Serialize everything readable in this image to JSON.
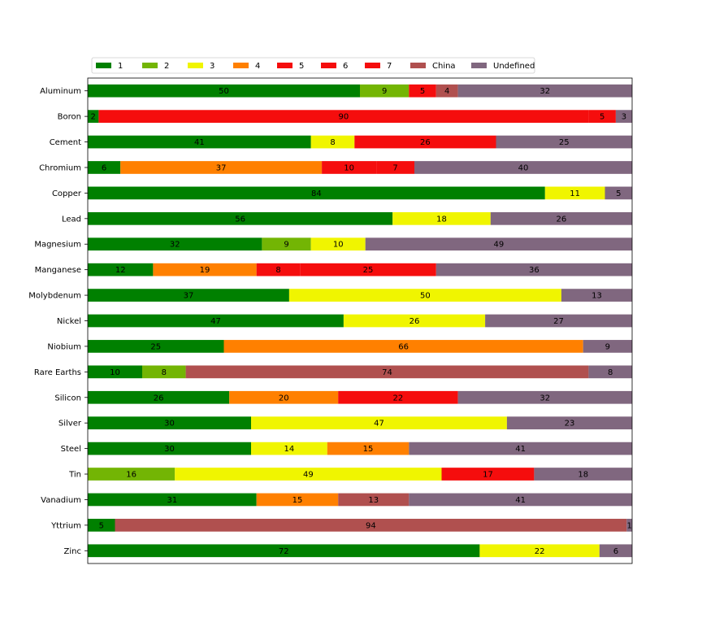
{
  "chart_data": {
    "type": "bar",
    "orientation": "horizontal",
    "stacked": true,
    "title": "",
    "xlabel": "",
    "ylabel": "",
    "xlim": [
      0,
      100
    ],
    "grid": false,
    "legend_position": "top-left",
    "categories": [
      "Aluminum",
      "Boron",
      "Cement",
      "Chromium",
      "Copper",
      "Lead",
      "Magnesium",
      "Manganese",
      "Molybdenum",
      "Nickel",
      "Niobium",
      "Rare Earths",
      "Silicon",
      "Silver",
      "Steel",
      "Tin",
      "Vanadium",
      "Yttrium",
      "Zinc"
    ],
    "series": [
      {
        "name": "1",
        "color": "#008000",
        "values": [
          50,
          2,
          41,
          6,
          84,
          56,
          32,
          12,
          37,
          47,
          25,
          10,
          26,
          30,
          30,
          0,
          31,
          5,
          72
        ]
      },
      {
        "name": "2",
        "color": "#73b504",
        "values": [
          9,
          0,
          0,
          0,
          0,
          0,
          9,
          0,
          0,
          0,
          0,
          8,
          0,
          0,
          0,
          16,
          0,
          0,
          0
        ]
      },
      {
        "name": "3",
        "color": "#f0f500",
        "values": [
          0,
          0,
          8,
          0,
          11,
          18,
          10,
          0,
          50,
          26,
          0,
          0,
          0,
          47,
          14,
          49,
          0,
          0,
          22
        ]
      },
      {
        "name": "4",
        "color": "#ff8000",
        "values": [
          0,
          0,
          0,
          37,
          0,
          0,
          0,
          19,
          0,
          0,
          66,
          0,
          20,
          0,
          15,
          0,
          15,
          0,
          0
        ]
      },
      {
        "name": "5",
        "color": "#f50d0d",
        "values": [
          5,
          90,
          26,
          10,
          0,
          0,
          0,
          8,
          0,
          0,
          0,
          0,
          22,
          0,
          0,
          17,
          0,
          0,
          0
        ]
      },
      {
        "name": "6",
        "color": "#f50d0d",
        "values": [
          0,
          0,
          0,
          0,
          0,
          0,
          0,
          25,
          0,
          0,
          0,
          0,
          0,
          0,
          0,
          0,
          0,
          0,
          0
        ]
      },
      {
        "name": "7",
        "color": "#f50d0d",
        "values": [
          0,
          5,
          0,
          7,
          0,
          0,
          0,
          0,
          0,
          0,
          0,
          0,
          0,
          0,
          0,
          0,
          0,
          0,
          0
        ]
      },
      {
        "name": "China",
        "color": "#b0504f",
        "values": [
          4,
          0,
          0,
          0,
          0,
          0,
          0,
          0,
          0,
          0,
          0,
          74,
          0,
          0,
          0,
          0,
          13,
          94,
          0
        ]
      },
      {
        "name": "Undefined",
        "color": "#80677f",
        "values": [
          32,
          3,
          25,
          40,
          5,
          26,
          49,
          36,
          13,
          27,
          9,
          8,
          32,
          23,
          41,
          18,
          41,
          1,
          6
        ]
      }
    ]
  }
}
